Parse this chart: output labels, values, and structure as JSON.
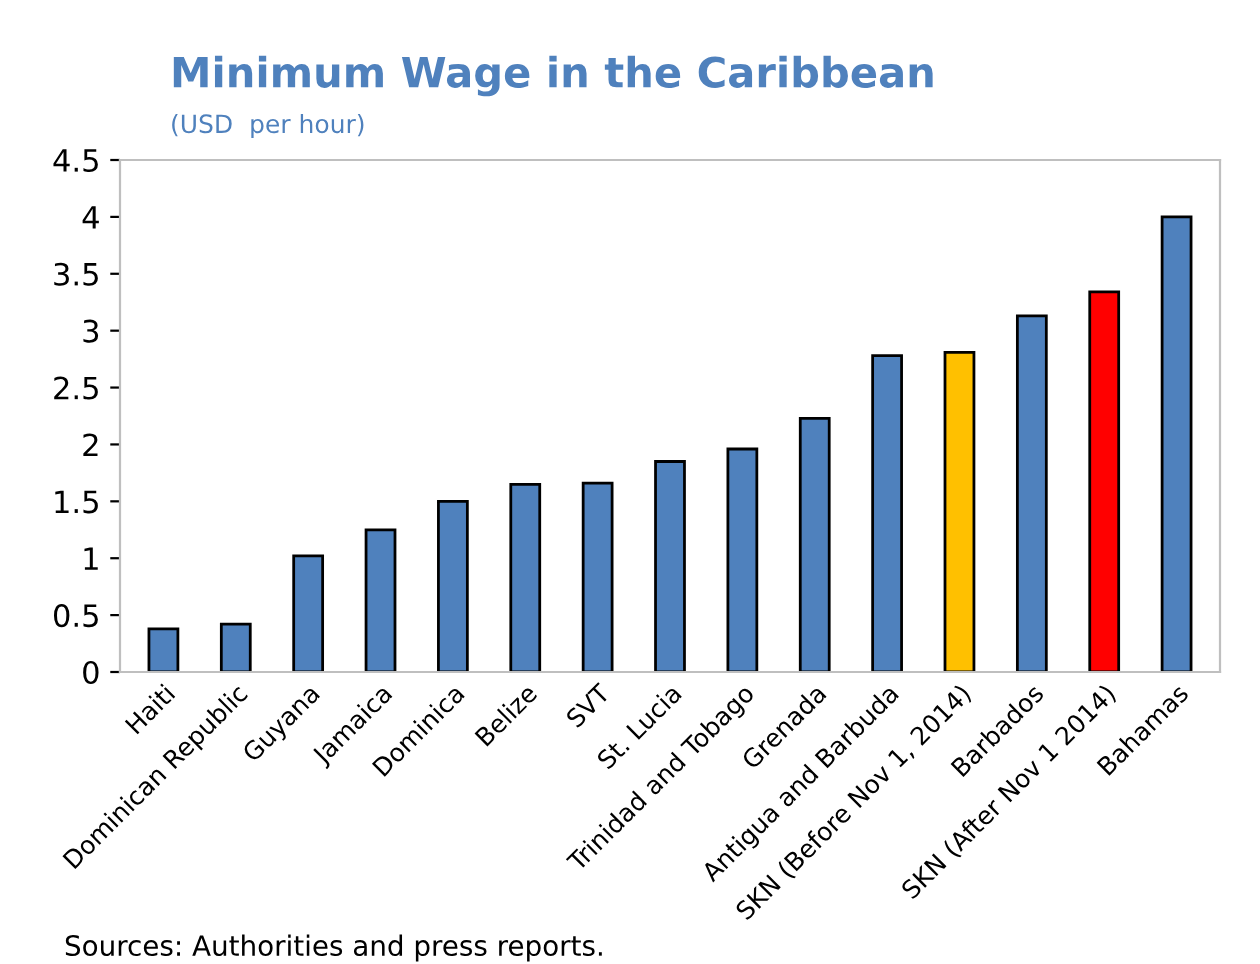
{
  "chart_data": {
    "type": "bar",
    "title": "Minimum Wage in the Caribbean",
    "subtitle": "(USD  per hour)",
    "categories": [
      "Haiti",
      "Dominican Republic",
      "Guyana",
      "Jamaica",
      "Dominica",
      "Belize",
      "SVT",
      "St. Lucia",
      "Trinidad and Tobago",
      "Grenada",
      "Antigua and Barbuda",
      "SKN (Before Nov 1, 2014)",
      "Barbados",
      "SKN (After Nov 1 2014)",
      "Bahamas"
    ],
    "values": [
      0.38,
      0.42,
      1.02,
      1.25,
      1.5,
      1.65,
      1.66,
      1.85,
      1.96,
      2.23,
      2.78,
      2.81,
      3.13,
      3.34,
      4.0
    ],
    "colors": [
      "#4f81bd",
      "#4f81bd",
      "#4f81bd",
      "#4f81bd",
      "#4f81bd",
      "#4f81bd",
      "#4f81bd",
      "#4f81bd",
      "#4f81bd",
      "#4f81bd",
      "#4f81bd",
      "#ffc000",
      "#4f81bd",
      "#ff0000",
      "#4f81bd"
    ],
    "ylim": [
      0,
      4.5
    ],
    "yticks": [
      0,
      0.5,
      1,
      1.5,
      2,
      2.5,
      3,
      3.5,
      4,
      4.5
    ],
    "grid": false,
    "legend": false,
    "annotations": [
      "Sources: Authorities and press reports."
    ]
  }
}
